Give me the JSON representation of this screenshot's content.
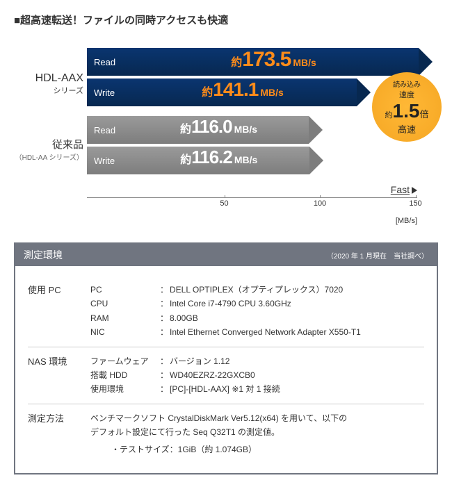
{
  "title": "■超高速転送！ファイルの同時アクセスも快適",
  "chart": {
    "axis_max": 180,
    "ticks": [
      50,
      100,
      150
    ],
    "unit_label": "[MB/s]",
    "fast_label": "Fast",
    "groups": [
      {
        "name": "HDL-AAX",
        "sub": "シリーズ",
        "bars": [
          {
            "label": "Read",
            "prefix": "約",
            "value": "173.5",
            "unit": "MB/s",
            "color": "navy",
            "highlight": true,
            "num_size": 30
          },
          {
            "label": "Write",
            "prefix": "約",
            "value": "141.1",
            "unit": "MB/s",
            "color": "navy",
            "highlight": true,
            "num_size": 28
          }
        ]
      },
      {
        "name": "従来品",
        "sub": "（HDL-AA シリーズ）",
        "bars": [
          {
            "label": "Read",
            "prefix": "約",
            "value": "116.0",
            "unit": "MB/s",
            "color": "grey",
            "highlight": false,
            "num_size": 26
          },
          {
            "label": "Write",
            "prefix": "約",
            "value": "116.2",
            "unit": "MB/s",
            "color": "grey",
            "highlight": false,
            "num_size": 26
          }
        ]
      }
    ],
    "badge": {
      "line1": "読み込み",
      "line2": "速度",
      "prefix": "約",
      "value": "1.5",
      "unit": "倍",
      "line4": "高速"
    }
  },
  "env": {
    "header_title": "測定環境",
    "header_date": "（2020 年 1 月現在　当社調べ）",
    "sections": [
      {
        "label": "使用 PC",
        "rows": [
          {
            "k": "PC",
            "v": "DELL OPTIPLEX（オプティプレックス）7020"
          },
          {
            "k": "CPU",
            "v": "Intel Core i7-4790 CPU 3.60GHz"
          },
          {
            "k": "RAM",
            "v": "8.00GB"
          },
          {
            "k": "NIC",
            "v": "Intel Ethernet Converged Network Adapter X550-T1"
          }
        ]
      },
      {
        "label": "NAS 環境",
        "rows": [
          {
            "k": "ファームウェア",
            "v": "バージョン 1.12"
          },
          {
            "k": "搭載 HDD",
            "v": "WD40EZRZ-22GXCB0"
          },
          {
            "k": "使用環境",
            "v": "[PC]-[HDL-AAX] ※1 対 1 接続"
          }
        ]
      },
      {
        "label": "測定方法",
        "text1": "ベンチマークソフト CrystalDiskMark Ver5.12(x64) を用いて、以下の",
        "text2": "デフォルト設定にて行った Seq Q32T1 の測定値。",
        "text3": "・テストサイズ：1GiB（約 1.074GB）"
      }
    ]
  }
}
